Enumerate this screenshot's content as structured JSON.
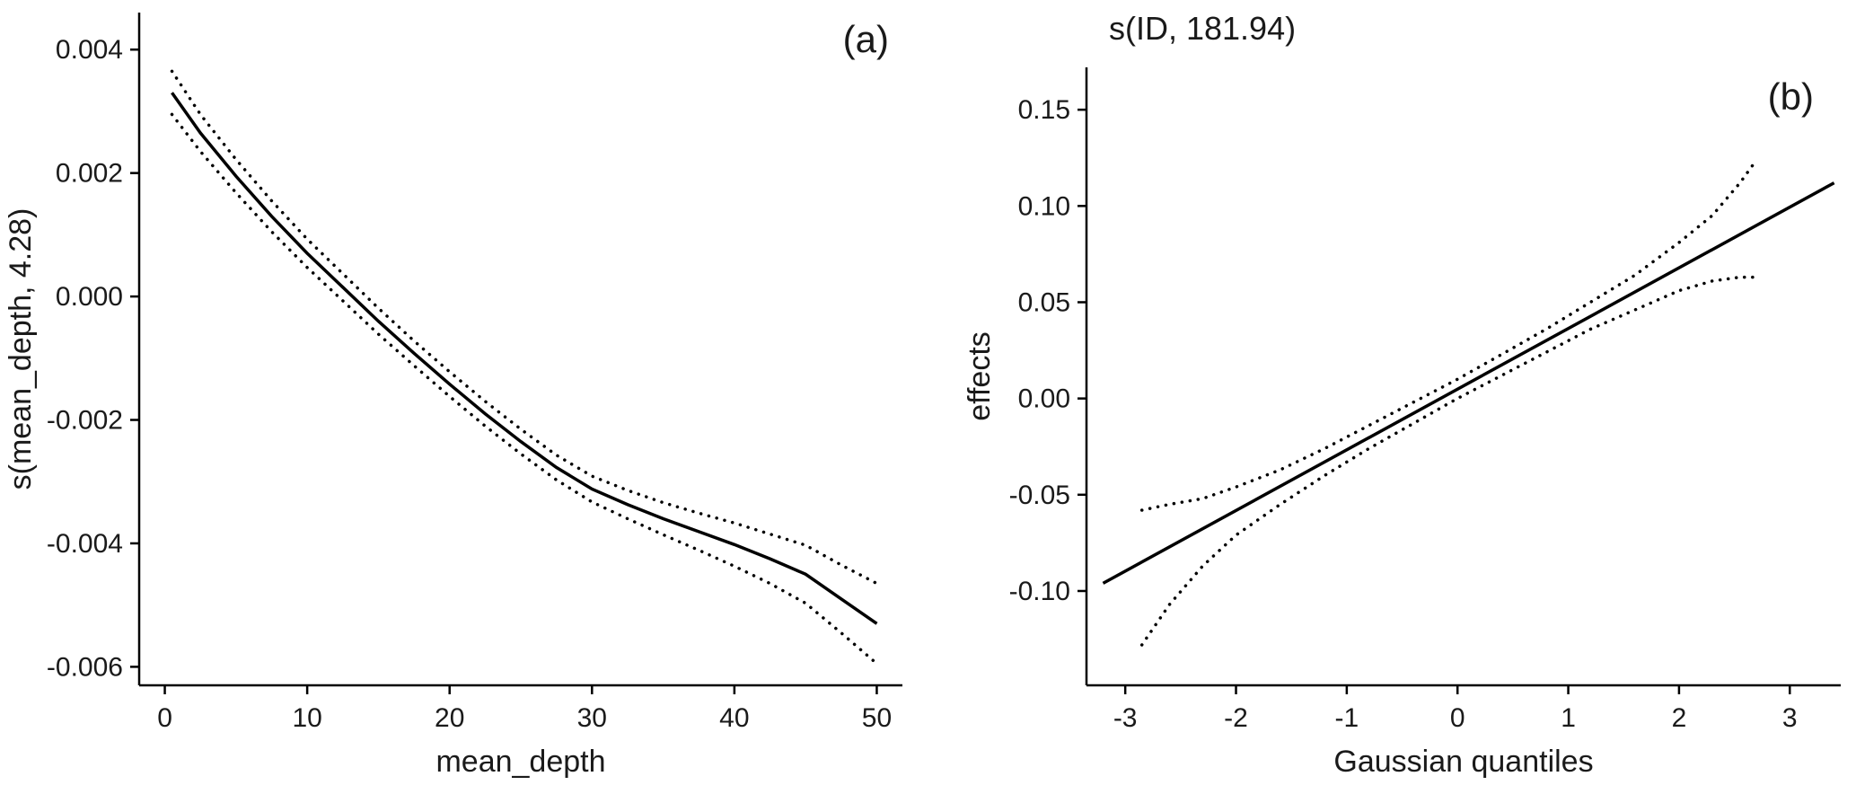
{
  "figure": {
    "background": "#ffffff",
    "ink_color": "#000000",
    "text_color": "#1a1a1a"
  },
  "chart_data": [
    {
      "type": "line",
      "panel_label": "(a)",
      "title": "",
      "xlabel": "mean_depth",
      "ylabel": "s(mean_depth, 4.28)",
      "xlim": [
        -1.8,
        51.8
      ],
      "ylim": [
        -0.0063,
        0.0046
      ],
      "grid": false,
      "legend": "none",
      "xticks": [
        0,
        10,
        20,
        30,
        40,
        50
      ],
      "xtick_labels": [
        "0",
        "10",
        "20",
        "30",
        "40",
        "50"
      ],
      "yticks": [
        0.004,
        0.002,
        0.0,
        -0.002,
        -0.004,
        -0.006
      ],
      "ytick_labels": [
        "0.004",
        "0.002",
        "0.000",
        "-0.002",
        "-0.004",
        "-0.006"
      ],
      "series": [
        {
          "name": "smooth-fit",
          "style": "solid",
          "x": [
            0.5,
            2.5,
            5,
            7.5,
            10,
            12.5,
            15,
            17.5,
            20,
            22.5,
            25,
            27.5,
            30,
            32.5,
            35,
            37.5,
            40,
            42.5,
            45,
            47.5,
            50
          ],
          "y": [
            0.0033,
            0.00265,
            0.00195,
            0.0013,
            0.0007,
            0.00015,
            -0.0004,
            -0.00092,
            -0.00142,
            -0.0019,
            -0.00235,
            -0.00277,
            -0.00312,
            -0.00337,
            -0.0036,
            -0.00381,
            -0.00402,
            -0.00425,
            -0.0045,
            -0.0049,
            -0.0053
          ]
        },
        {
          "name": "ci-upper",
          "style": "dotted",
          "x": [
            0.5,
            2.5,
            5,
            7.5,
            10,
            12.5,
            15,
            17.5,
            20,
            22.5,
            25,
            27.5,
            30,
            32.5,
            35,
            37.5,
            40,
            42.5,
            45,
            47.5,
            50
          ],
          "y": [
            0.00365,
            0.00295,
            0.00222,
            0.00155,
            0.00093,
            0.00037,
            -0.00019,
            -0.00072,
            -0.00122,
            -0.0017,
            -0.00215,
            -0.00257,
            -0.00291,
            -0.00314,
            -0.00334,
            -0.00351,
            -0.00367,
            -0.00385,
            -0.00403,
            -0.00435,
            -0.00465
          ]
        },
        {
          "name": "ci-lower",
          "style": "dotted",
          "x": [
            0.5,
            2.5,
            5,
            7.5,
            10,
            12.5,
            15,
            17.5,
            20,
            22.5,
            25,
            27.5,
            30,
            32.5,
            35,
            37.5,
            40,
            42.5,
            45,
            47.5,
            50
          ],
          "y": [
            0.00295,
            0.00235,
            0.00168,
            0.00105,
            0.00047,
            -7e-05,
            -0.00061,
            -0.00112,
            -0.00162,
            -0.0021,
            -0.00255,
            -0.00297,
            -0.00333,
            -0.0036,
            -0.00386,
            -0.00411,
            -0.00437,
            -0.00465,
            -0.00497,
            -0.00545,
            -0.00595
          ]
        }
      ]
    },
    {
      "type": "line",
      "panel_label": "(b)",
      "title": "s(ID, 181.94)",
      "xlabel": "Gaussian quantiles",
      "ylabel": "effects",
      "xlim": [
        -3.35,
        3.46
      ],
      "ylim": [
        -0.149,
        0.172
      ],
      "grid": false,
      "legend": "none",
      "xticks": [
        -3,
        -2,
        -1,
        0,
        1,
        2,
        3
      ],
      "xtick_labels": [
        "-3",
        "-2",
        "-1",
        "0",
        "1",
        "2",
        "3"
      ],
      "yticks": [
        0.15,
        0.1,
        0.05,
        0.0,
        -0.05,
        -0.1
      ],
      "ytick_labels": [
        "0.15",
        "0.10",
        "0.05",
        "0.00",
        "-0.05",
        "-0.10"
      ],
      "series": [
        {
          "name": "effects-fit",
          "style": "solid",
          "x": [
            -3.2,
            3.4
          ],
          "y": [
            -0.096,
            0.112
          ]
        },
        {
          "name": "ci-upper",
          "style": "dotted",
          "x": [
            -2.85,
            -2.6,
            -2.3,
            -2.0,
            -1.6,
            -1.2,
            -0.8,
            -0.4,
            0,
            0.4,
            0.8,
            1.2,
            1.6,
            2.0,
            2.3,
            2.55,
            2.7
          ],
          "y": [
            -0.058,
            -0.055,
            -0.052,
            -0.046,
            -0.037,
            -0.026,
            -0.014,
            -0.002,
            0.01,
            0.023,
            0.036,
            0.05,
            0.064,
            0.081,
            0.095,
            0.112,
            0.124
          ]
        },
        {
          "name": "ci-lower",
          "style": "dotted",
          "x": [
            -2.85,
            -2.6,
            -2.3,
            -2.0,
            -1.6,
            -1.2,
            -0.8,
            -0.4,
            0,
            0.4,
            0.8,
            1.2,
            1.6,
            2.0,
            2.3,
            2.55,
            2.7
          ],
          "y": [
            -0.128,
            -0.107,
            -0.087,
            -0.071,
            -0.055,
            -0.04,
            -0.026,
            -0.013,
            0.0,
            0.012,
            0.024,
            0.036,
            0.046,
            0.056,
            0.061,
            0.063,
            0.063
          ]
        }
      ]
    }
  ]
}
